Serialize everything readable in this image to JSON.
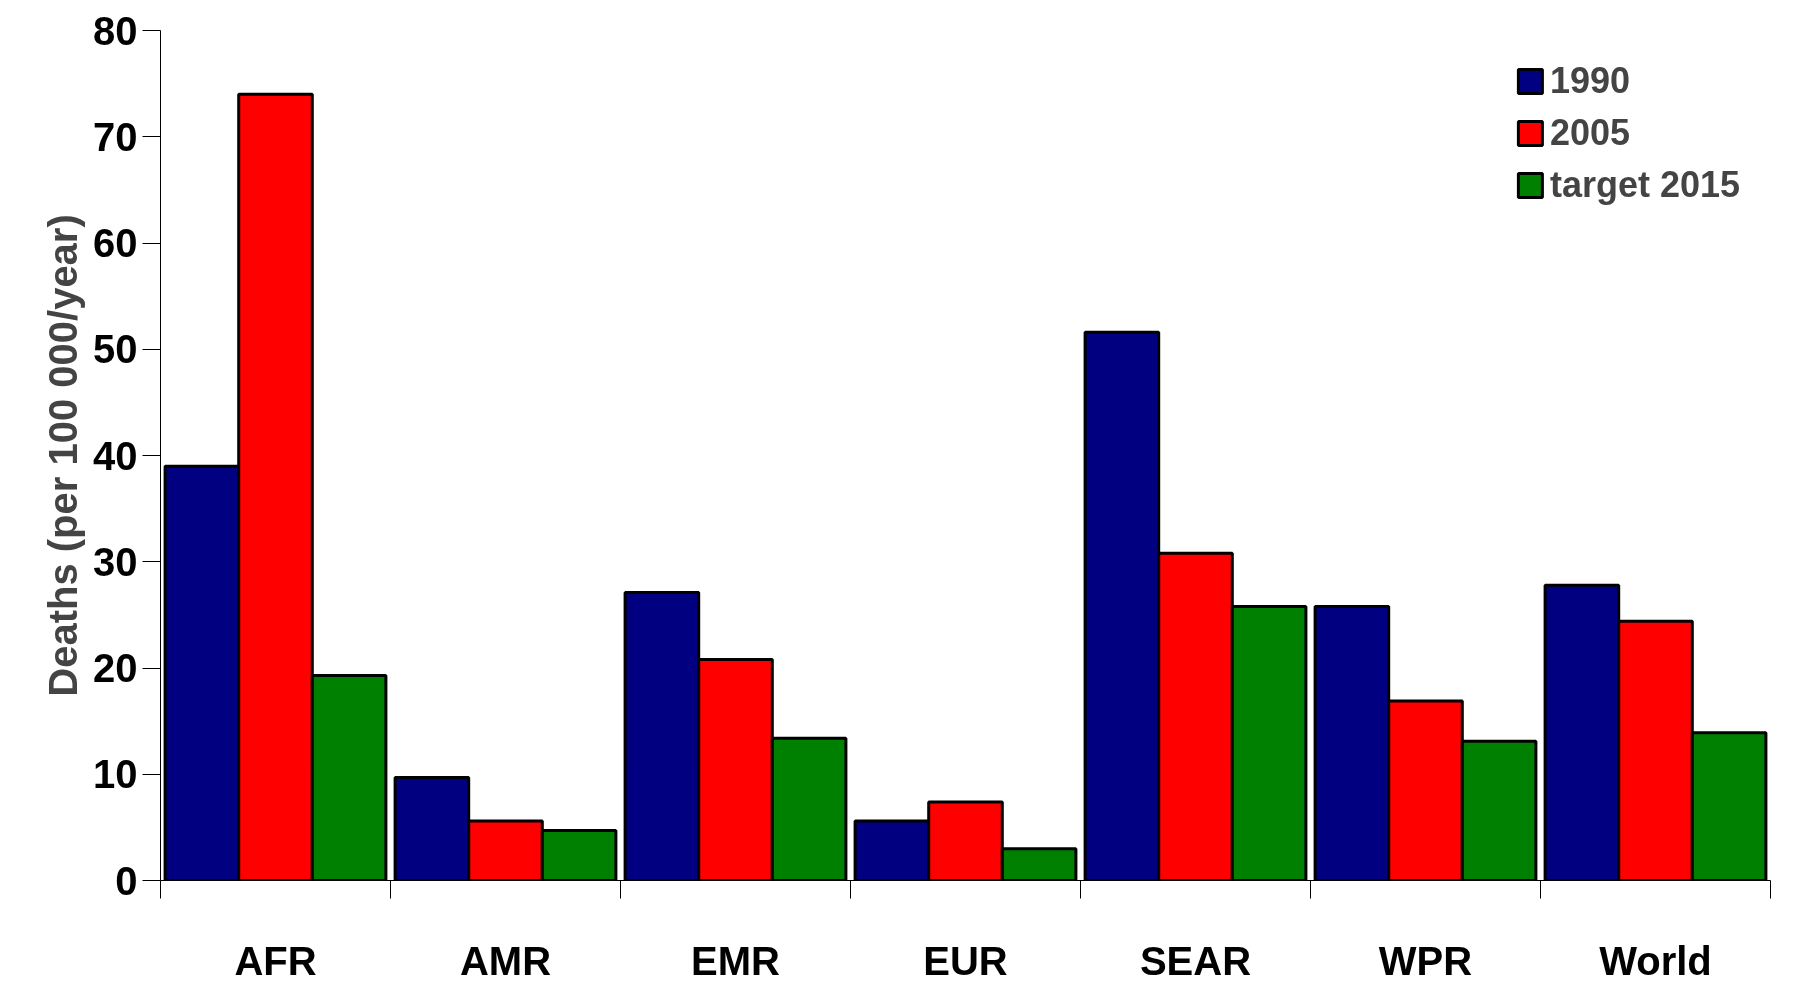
{
  "chart_data": {
    "type": "bar",
    "ylabel": "Deaths (per 100 000/year)",
    "categories": [
      "AFR",
      "AMR",
      "EMR",
      "EUR",
      "SEAR",
      "WPR",
      "World"
    ],
    "series": [
      {
        "name": "1990",
        "color": "#000080",
        "values": [
          39.0,
          9.7,
          27.1,
          5.6,
          51.6,
          25.8,
          27.8
        ]
      },
      {
        "name": "2005",
        "color": "#ff0000",
        "values": [
          74.0,
          5.6,
          20.8,
          7.4,
          30.8,
          16.9,
          24.4
        ]
      },
      {
        "name": "target 2015",
        "color": "#008000",
        "values": [
          19.3,
          4.7,
          13.4,
          3.0,
          25.8,
          13.1,
          13.9
        ]
      }
    ],
    "ylim": [
      0,
      80
    ],
    "yticks": [
      0,
      10,
      20,
      30,
      40,
      50,
      60,
      70,
      80
    ],
    "grid": false,
    "legend": "top right"
  }
}
